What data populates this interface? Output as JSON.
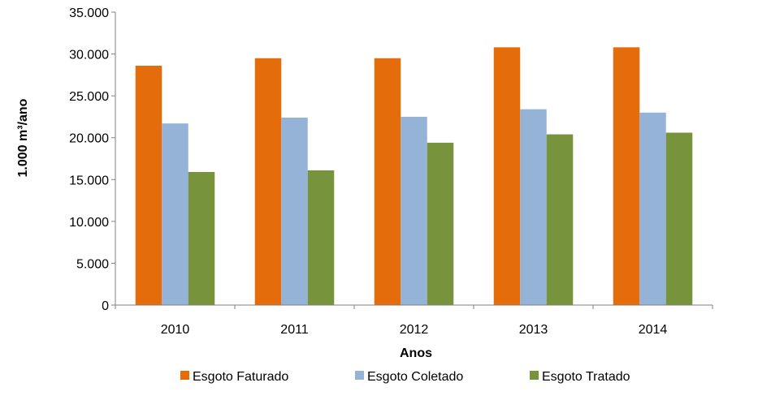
{
  "chart_data": {
    "type": "bar",
    "title": "",
    "xlabel": "Anos",
    "ylabel": "1.000 m³/ano",
    "categories": [
      "2010",
      "2011",
      "2012",
      "2013",
      "2014"
    ],
    "ylim": [
      0,
      35000
    ],
    "yticks": [
      0,
      5000,
      10000,
      15000,
      20000,
      25000,
      30000,
      35000
    ],
    "ytick_labels": [
      "0",
      "5.000",
      "10.000",
      "15.000",
      "20.000",
      "25.000",
      "30.000",
      "35.000"
    ],
    "grid": false,
    "legend_position": "bottom",
    "series": [
      {
        "name": "Esgoto Faturado",
        "color": "#E46C0A",
        "values": [
          28600,
          29500,
          29500,
          30800,
          30800
        ]
      },
      {
        "name": "Esgoto Coletado",
        "color": "#95B3D7",
        "values": [
          21700,
          22400,
          22500,
          23400,
          23000
        ]
      },
      {
        "name": "Esgoto Tratado",
        "color": "#77933C",
        "values": [
          15900,
          16100,
          19400,
          20400,
          20600
        ]
      }
    ]
  }
}
